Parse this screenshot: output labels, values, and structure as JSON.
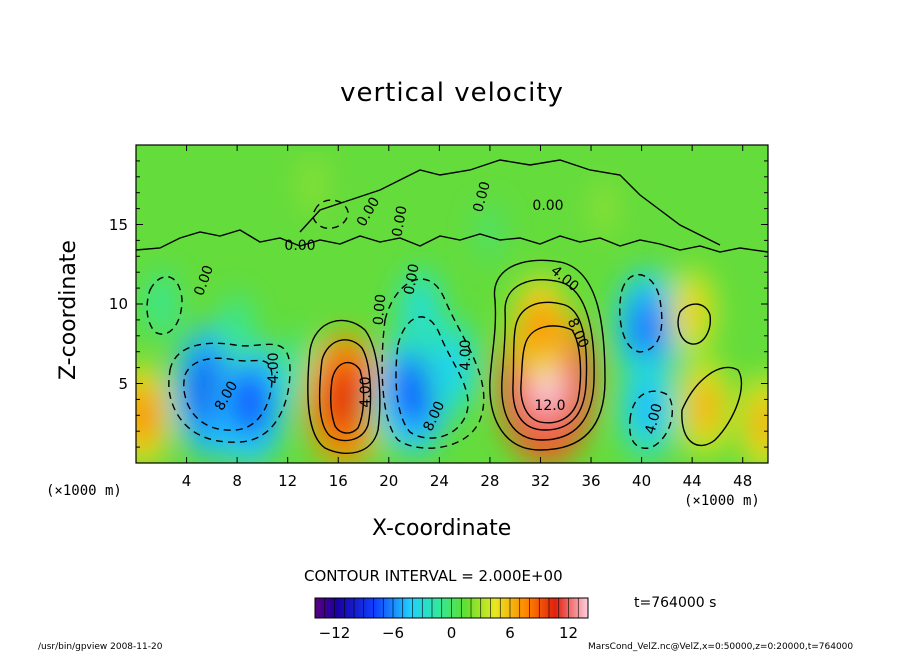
{
  "chart_data": {
    "type": "heatmap",
    "title": "vertical velocity",
    "xlabel": "X-coordinate",
    "ylabel": "Z-coordinate",
    "x_unit_label": "(×1000 m)",
    "xlim": [
      0,
      50
    ],
    "ylim": [
      0,
      20
    ],
    "x_ticks": [
      "4",
      "8",
      "12",
      "16",
      "20",
      "24",
      "28",
      "32",
      "36",
      "40",
      "44",
      "48"
    ],
    "y_ticks": [
      "5",
      "10",
      "15"
    ],
    "contour_interval_label": "CONTOUR INTERVAL = 2.000E+00",
    "contour_labels": [
      "0.00",
      "0.00",
      "0.00",
      "0.00",
      "0.00",
      "0.00",
      "0.00",
      "0.00",
      "4.00",
      "4.00",
      "4.00",
      "4.00",
      "4.00",
      "8.00",
      "8.00",
      "8.00",
      "12.0"
    ],
    "colorbar": {
      "range": [
        -14,
        14
      ],
      "ticks": [
        "−12",
        "−6",
        "0",
        "6",
        "12"
      ]
    },
    "cells": [
      {
        "x": 0.5,
        "z": 3.0,
        "value": 6
      },
      {
        "x": 6.0,
        "z": 4.5,
        "value": -10
      },
      {
        "x": 9.0,
        "z": 3.8,
        "value": -9
      },
      {
        "x": 8.0,
        "z": 8.5,
        "value": -2
      },
      {
        "x": 13.0,
        "z": 6.0,
        "value": -2
      },
      {
        "x": 16.5,
        "z": 4.0,
        "value": 10
      },
      {
        "x": 19.5,
        "z": 3.0,
        "value": 1
      },
      {
        "x": 22.0,
        "z": 4.5,
        "value": -9
      },
      {
        "x": 25.0,
        "z": 6.0,
        "value": -5
      },
      {
        "x": 22.5,
        "z": 9.5,
        "value": -4
      },
      {
        "x": 32.5,
        "z": 5.0,
        "value": 14
      },
      {
        "x": 32.0,
        "z": 8.5,
        "value": 6
      },
      {
        "x": 40.5,
        "z": 8.5,
        "value": -8
      },
      {
        "x": 40.5,
        "z": 3.5,
        "value": -6
      },
      {
        "x": 44.0,
        "z": 9.5,
        "value": 4
      },
      {
        "x": 45.0,
        "z": 3.5,
        "value": 5
      },
      {
        "x": 49.8,
        "z": 2.5,
        "value": 5
      },
      {
        "x": 2.0,
        "z": 10.0,
        "value": -2
      },
      {
        "x": 14.0,
        "z": 17.5,
        "value": 1
      },
      {
        "x": 37.0,
        "z": 16.0,
        "value": 1
      },
      {
        "x": 28.0,
        "z": 14.5,
        "value": -1
      }
    ]
  },
  "annotations": {
    "time": "t=764000 s",
    "footer_left": "/usr/bin/gpview  2008-11-20",
    "footer_right": "MarsCond_VelZ.nc@VelZ,x=0:50000,z=0:20000,t=764000"
  }
}
